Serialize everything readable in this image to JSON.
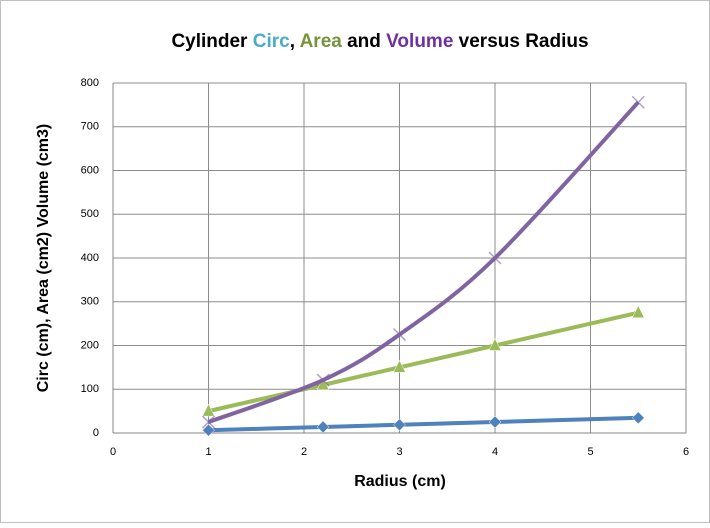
{
  "chart_data": {
    "type": "line",
    "title_parts": [
      {
        "text": "Cylinder ",
        "color": "#000000"
      },
      {
        "text": "Circ",
        "color": "#4bacc6"
      },
      {
        "text": ", ",
        "color": "#000000"
      },
      {
        "text": "Area",
        "color": "#77933c"
      },
      {
        "text": " and ",
        "color": "#000000"
      },
      {
        "text": "Volume",
        "color": "#7030a0"
      },
      {
        "text": " versus Radius",
        "color": "#000000"
      }
    ],
    "x_label": "Radius (cm)",
    "y_label": "Circ (cm), Area (cm2) Volume (cm3)",
    "x": [
      1,
      2.2,
      3,
      4,
      5.5
    ],
    "series": [
      {
        "name": "Circ",
        "color": "#4f81bd",
        "marker": "diamond",
        "values": [
          6.28,
          13.8,
          18.8,
          25.1,
          34.6
        ]
      },
      {
        "name": "Area",
        "color": "#9bbb59",
        "marker": "triangle",
        "values": [
          50,
          110,
          150,
          200,
          275
        ]
      },
      {
        "name": "Volume",
        "color": "#8064a2",
        "marker": "x",
        "values": [
          25,
          121,
          225,
          400,
          756
        ]
      }
    ],
    "xlim": [
      0,
      6
    ],
    "xticks": [
      0,
      1,
      2,
      3,
      4,
      5,
      6
    ],
    "ylim": [
      0,
      800
    ],
    "yticks": [
      0,
      100,
      200,
      300,
      400,
      500,
      600,
      700,
      800
    ],
    "grid": true,
    "smooth": true
  }
}
